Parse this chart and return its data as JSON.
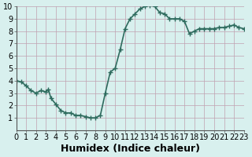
{
  "x": [
    0,
    0.5,
    1,
    1.5,
    2,
    2.5,
    3,
    3.25,
    3.5,
    4,
    4.5,
    5,
    5.5,
    6,
    6.5,
    7,
    7.5,
    8,
    8.5,
    9,
    9.5,
    10,
    10.5,
    11,
    11.5,
    12,
    12.5,
    13,
    13.5,
    14,
    14.5,
    15,
    15.5,
    16,
    16.5,
    17,
    17.5,
    18,
    18.5,
    19,
    19.5,
    20,
    20.5,
    21,
    21.5,
    22,
    22.5,
    23
  ],
  "y": [
    4.0,
    3.9,
    3.6,
    3.2,
    3.0,
    3.2,
    3.1,
    3.3,
    2.6,
    2.1,
    1.6,
    1.4,
    1.4,
    1.2,
    1.2,
    1.1,
    1.0,
    1.0,
    1.2,
    3.0,
    4.7,
    5.0,
    6.5,
    8.2,
    9.0,
    9.4,
    9.8,
    10.0,
    10.1,
    10.0,
    9.5,
    9.4,
    9.0,
    9.0,
    9.0,
    8.8,
    7.8,
    8.0,
    8.2,
    8.2,
    8.2,
    8.2,
    8.3,
    8.3,
    8.4,
    8.5,
    8.3,
    8.2
  ],
  "color": "#2e6b5e",
  "bg_color": "#d8f0ee",
  "grid_color": "#c0a0b0",
  "xlabel": "Humidex (Indice chaleur)",
  "xlim": [
    0,
    23
  ],
  "ylim": [
    0,
    10
  ],
  "xticks": [
    0,
    1,
    2,
    3,
    4,
    5,
    6,
    7,
    8,
    9,
    10,
    11,
    12,
    13,
    14,
    15,
    16,
    17,
    18,
    19,
    20,
    21,
    22,
    23
  ],
  "yticks": [
    1,
    2,
    3,
    4,
    5,
    6,
    7,
    8,
    9,
    10
  ],
  "marker": "+",
  "markersize": 5,
  "linewidth": 1.2,
  "xlabel_fontsize": 9,
  "tick_fontsize": 7
}
